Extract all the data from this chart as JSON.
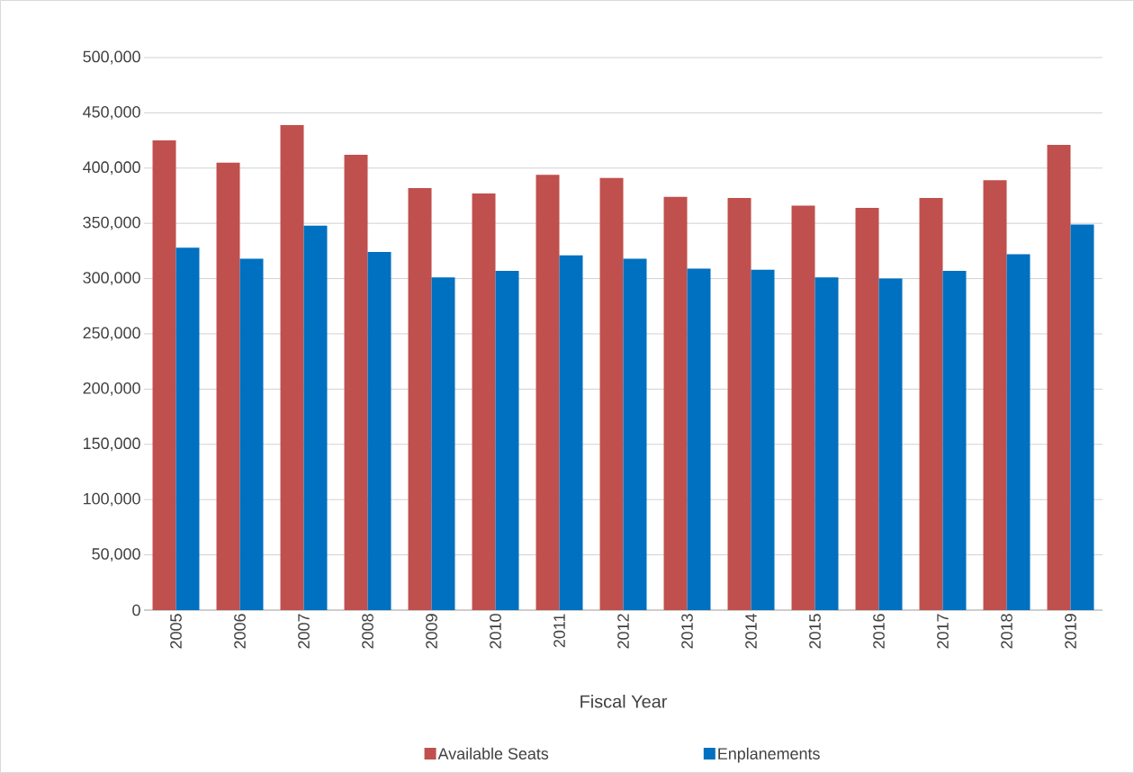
{
  "chart_data": {
    "type": "bar",
    "xlabel": "Fiscal Year",
    "categories": [
      "2005",
      "2006",
      "2007",
      "2008",
      "2009",
      "2010",
      "2011",
      "2012",
      "2013",
      "2014",
      "2015",
      "2016",
      "2017",
      "2018",
      "2019"
    ],
    "series": [
      {
        "name": "Available Seats",
        "color": "#c0504d",
        "values": [
          425000,
          405000,
          439000,
          412000,
          382000,
          377000,
          394000,
          391000,
          374000,
          373000,
          366000,
          364000,
          373000,
          389000,
          421000
        ]
      },
      {
        "name": "Enplanements",
        "color": "#0070c0",
        "values": [
          328000,
          318000,
          348000,
          324000,
          301000,
          307000,
          321000,
          318000,
          309000,
          308000,
          301000,
          300000,
          307000,
          322000,
          349000
        ]
      }
    ],
    "ylim": [
      0,
      500000
    ],
    "yticks": [
      0,
      {
        "value": 50000,
        "label": "50,000"
      },
      {
        "value": 100000,
        "label": "100,000"
      },
      {
        "value": 150000,
        "label": "150,000"
      },
      {
        "value": 200000,
        "label": "200,000"
      },
      {
        "value": 250000,
        "label": "250,000"
      },
      {
        "value": 300000,
        "label": "300,000"
      },
      {
        "value": 350000,
        "label": "350,000"
      },
      {
        "value": 400000,
        "label": "400,000"
      },
      {
        "value": 450000,
        "label": "450,000"
      },
      {
        "value": 500000,
        "label": "500,000"
      }
    ],
    "grid": "y",
    "legend": "bottom"
  }
}
